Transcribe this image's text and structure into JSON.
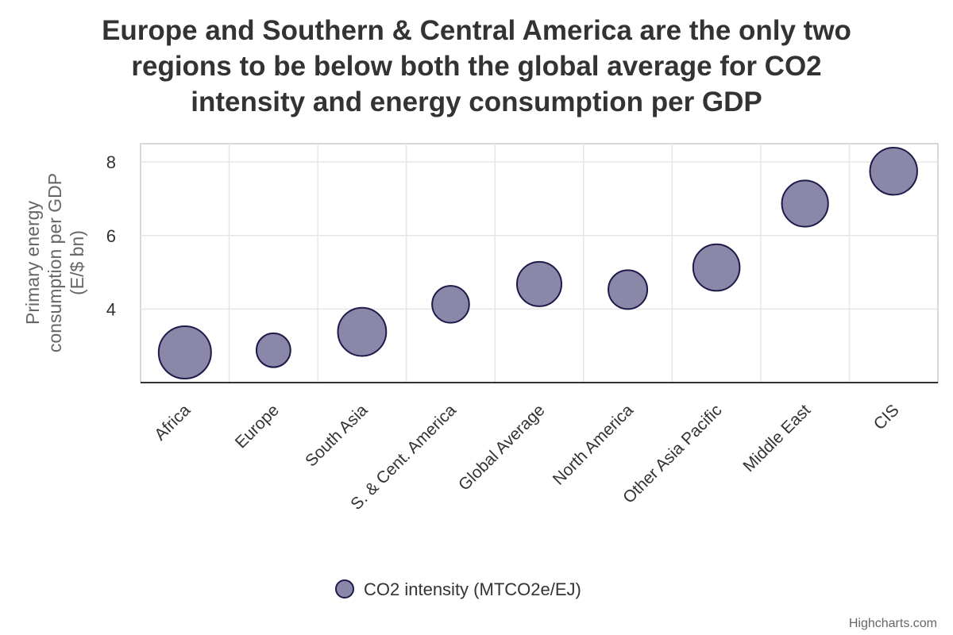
{
  "chart_data": {
    "type": "bubble",
    "title": "Europe and Southern & Central America are the only two regions to be below both the global average for CO2 intensity and energy consumption per GDP",
    "title_lines": [
      "Europe and Southern & Central America are the only two",
      "regions to be below both the global average for CO2",
      "intensity and energy consumption per GDP"
    ],
    "ylabel": "Primary energy consumption per GDP (E/$ bn)",
    "ylabel_lines": [
      "Primary energy",
      "consumption per GDP",
      "(E/$ bn)"
    ],
    "xlabel": "",
    "ylim": [
      2,
      8.5
    ],
    "yticks": [
      4,
      6,
      8
    ],
    "categories": [
      "Africa",
      "Europe",
      "South Asia",
      "S. & Cent. America",
      "Global Average",
      "North America",
      "Other Asia Pacific",
      "Middle East",
      "CIS"
    ],
    "series": [
      {
        "name": "CO2 intensity (MTCO2e/EJ)",
        "color": "#8a87a8",
        "border_color": "#1e1b4b",
        "y": [
          2.82,
          2.88,
          3.38,
          4.13,
          4.68,
          4.53,
          5.13,
          6.87,
          7.75
        ],
        "z": [
          100,
          42,
          85,
          50,
          72,
          55,
          79,
          78,
          81
        ]
      }
    ],
    "legend_position": "bottom-center",
    "grid": true
  },
  "credits": "Highcharts.com"
}
